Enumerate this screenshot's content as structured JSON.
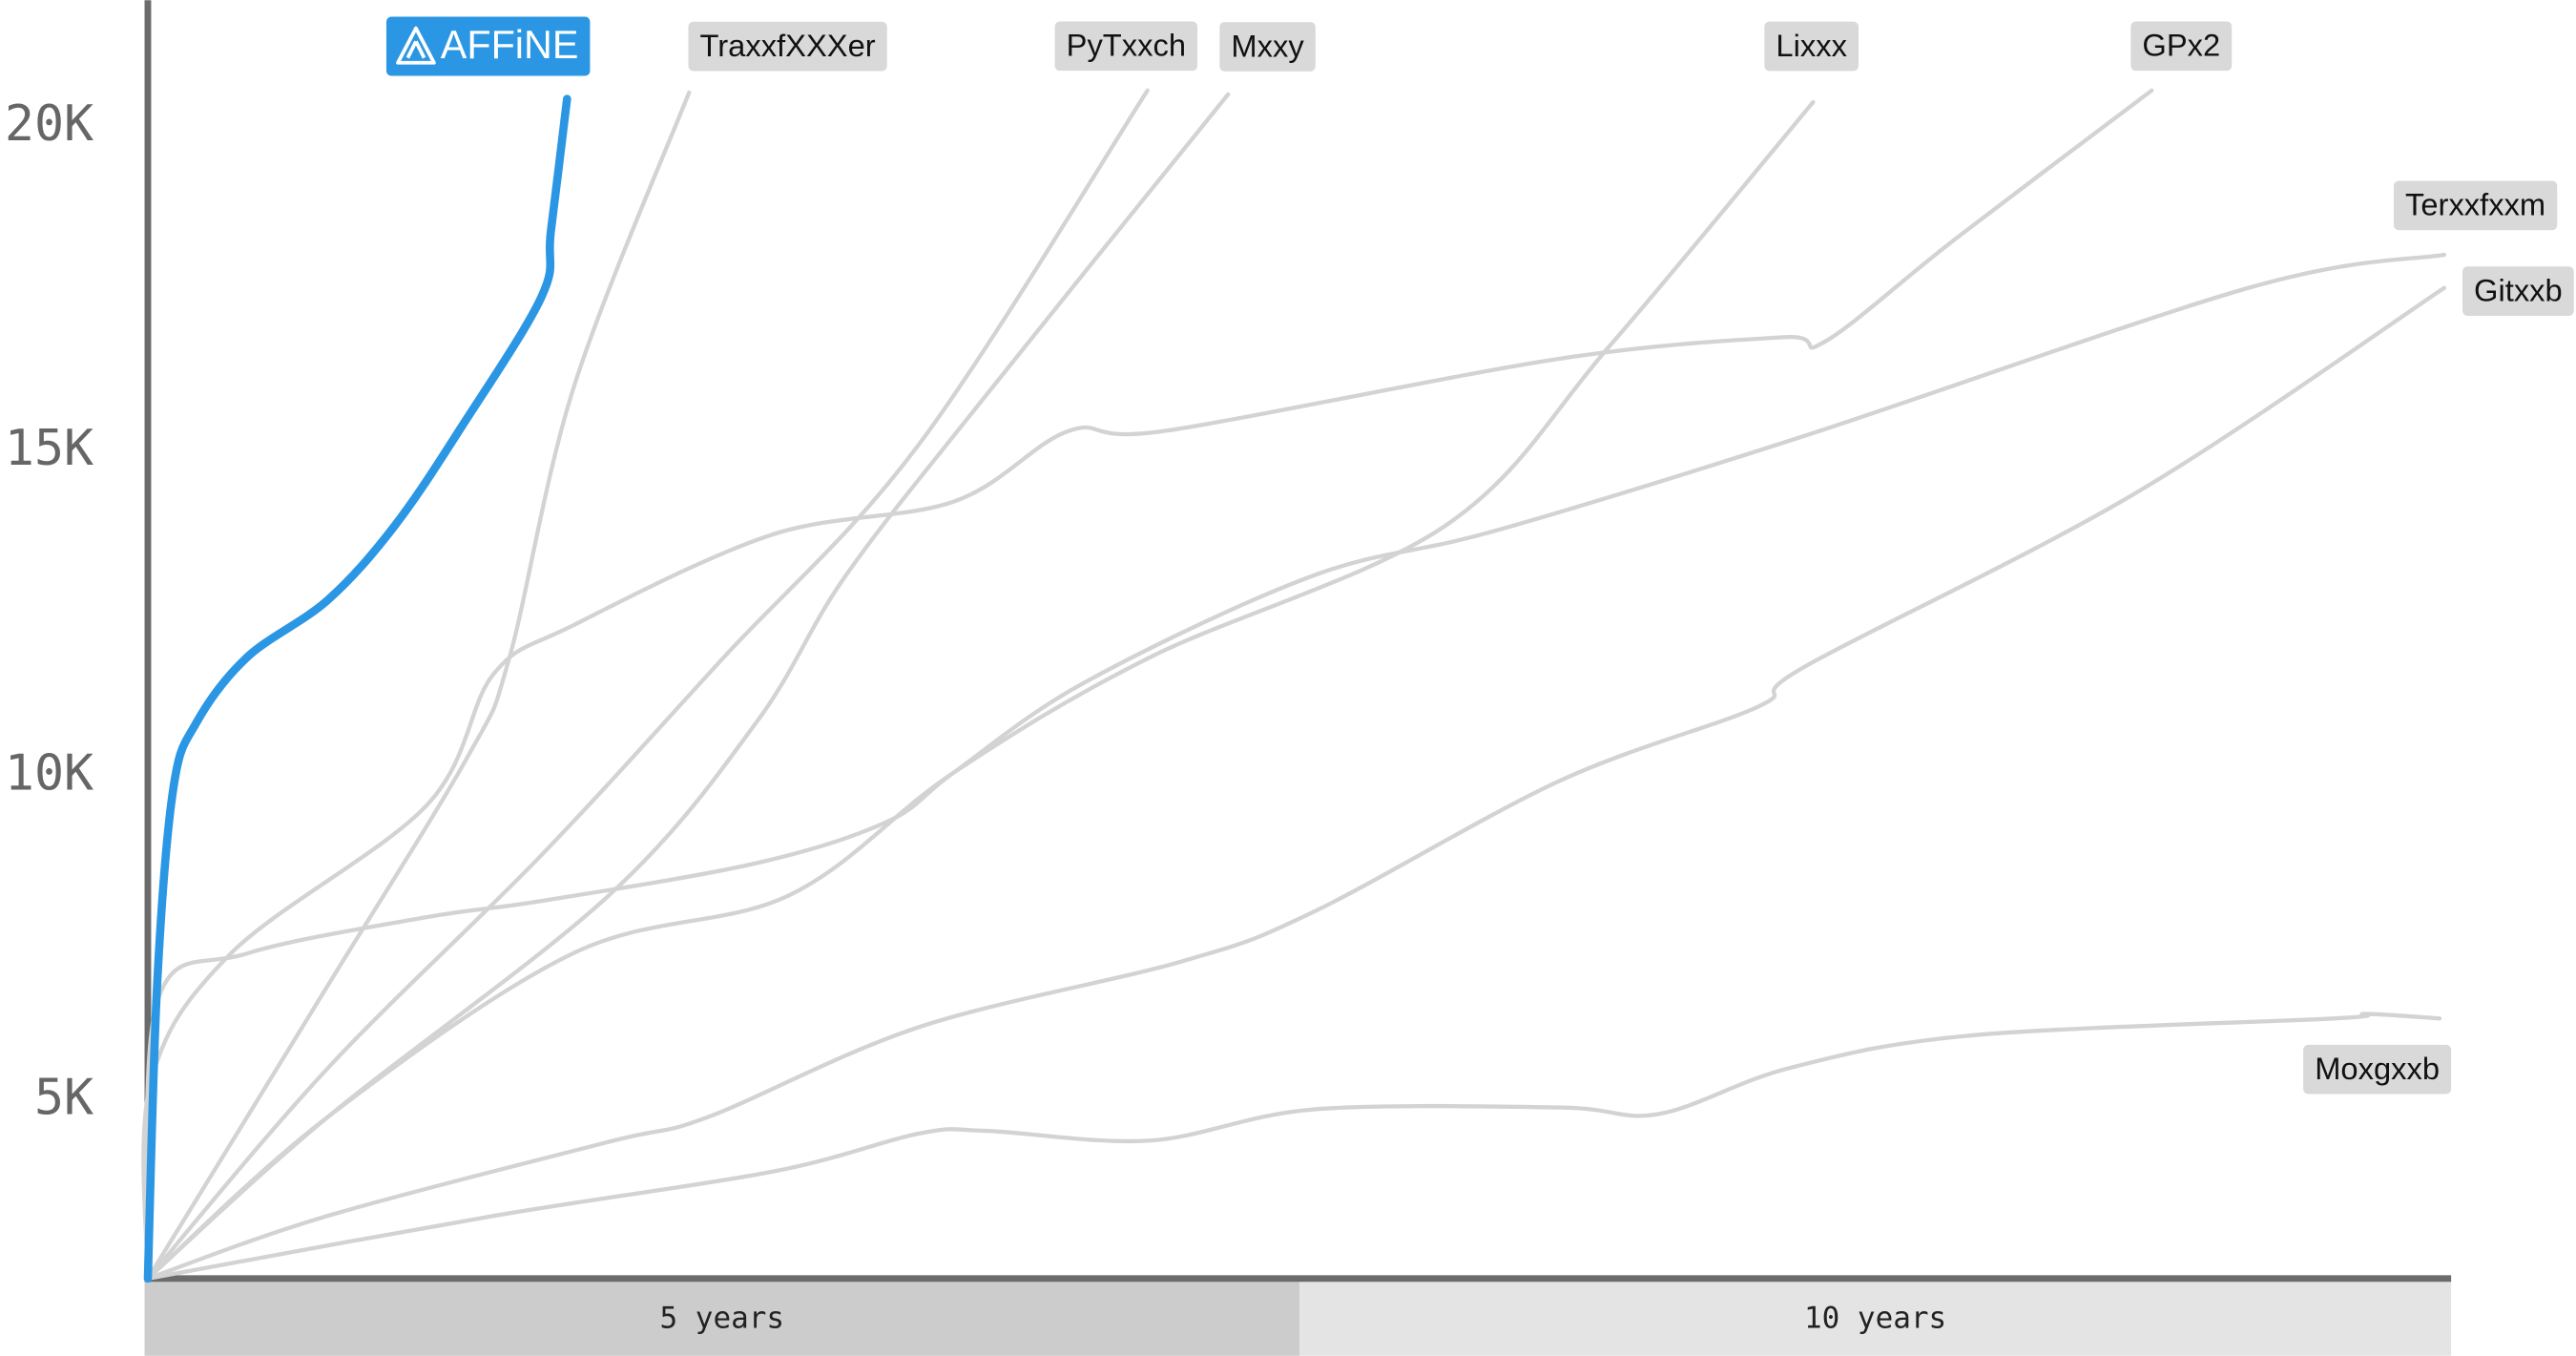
{
  "chart_data": {
    "type": "line",
    "xlim": [
      0,
      10
    ],
    "xticks": [
      {
        "value": 5,
        "label": "5 years"
      },
      {
        "value": 10,
        "label": "10 years"
      }
    ],
    "ylim": [
      2265,
      21950
    ],
    "yticks": [
      {
        "value": 5000,
        "label": "5K"
      },
      {
        "value": 10000,
        "label": "10K"
      },
      {
        "value": 15000,
        "label": "15K"
      },
      {
        "value": 20000,
        "label": "20K"
      }
    ],
    "series": [
      {
        "name": "AFFiNE",
        "color": "#2b97e4",
        "x": [
          0,
          0.04,
          0.11,
          0.21,
          0.43,
          0.78,
          1.07,
          1.36,
          1.71,
          1.75,
          1.82
        ],
        "values": [
          2265,
          6770,
          9800,
          10820,
          11830,
          12710,
          13850,
          15370,
          17390,
          18400,
          20430
        ]
      },
      {
        "name": "TraxxfXXXer",
        "color": "#d3d3d3",
        "x": [
          0,
          0.78,
          1.39,
          1.57,
          1.85,
          2.35
        ],
        "values": [
          2265,
          6770,
          10310,
          11830,
          16000,
          20530
        ]
      },
      {
        "name": "PyTxxch",
        "color": "#d3d3d3",
        "x": [
          0,
          0.78,
          1.71,
          2.5,
          3.35,
          4.34
        ],
        "values": [
          2265,
          5500,
          8790,
          11830,
          15120,
          20560
        ]
      },
      {
        "name": "Mxxy",
        "color": "#d3d3d3",
        "x": [
          0,
          0.78,
          2.0,
          2.64,
          3.03,
          3.64,
          4.69
        ],
        "values": [
          2265,
          4750,
          8160,
          10820,
          13090,
          15870,
          20500
        ]
      },
      {
        "name": "Lixxx",
        "color": "#d3d3d3",
        "x": [
          0,
          0.78,
          1.85,
          2.78,
          3.5,
          4.35,
          5.63,
          6.35,
          7.23
        ],
        "values": [
          2265,
          4750,
          7280,
          8160,
          10060,
          11830,
          13850,
          16640,
          20380
        ]
      },
      {
        "name": "GPx2",
        "color": "#d3d3d3",
        "x": [
          0,
          0.01,
          0.36,
          1.21,
          1.5,
          1.85,
          2.71,
          3.5,
          4.0,
          4.42,
          6.13,
          7.1,
          7.28,
          7.85,
          8.7
        ],
        "values": [
          2265,
          5250,
          7270,
          9550,
          11570,
          12330,
          13720,
          14230,
          15320,
          15320,
          16430,
          16760,
          16690,
          18280,
          20560
        ]
      },
      {
        "name": "Terxxfxxm",
        "color": "#d3d3d3",
        "x": [
          0,
          0.04,
          0.43,
          1.21,
          1.71,
          2.64,
          3.21,
          3.5,
          4.07,
          5.06,
          5.85,
          7.2,
          9.13,
          9.97
        ],
        "values": [
          2265,
          6520,
          7270,
          7830,
          8080,
          8660,
          9300,
          10060,
          11450,
          13090,
          13780,
          15250,
          17530,
          18030
        ]
      },
      {
        "name": "Gitxxb",
        "color": "#d3d3d3",
        "x": [
          0,
          0.78,
          2.0,
          2.43,
          3.35,
          4.49,
          5.06,
          6.13,
          6.99,
          7.2,
          8.63,
          9.97
        ],
        "values": [
          2265,
          3230,
          4370,
          4750,
          6140,
          7150,
          7910,
          9930,
          11070,
          11700,
          14360,
          17520
        ]
      },
      {
        "name": "Moxgxxb",
        "color": "#d3d3d3",
        "x": [
          0,
          1.5,
          2.71,
          3.35,
          3.64,
          4.35,
          5.06,
          6.13,
          6.56,
          7.13,
          7.92,
          9.49,
          9.63,
          9.95
        ],
        "values": [
          2265,
          3230,
          3910,
          4500,
          4540,
          4390,
          4870,
          4900,
          4800,
          5510,
          6010,
          6270,
          6340,
          6270
        ]
      }
    ]
  }
}
